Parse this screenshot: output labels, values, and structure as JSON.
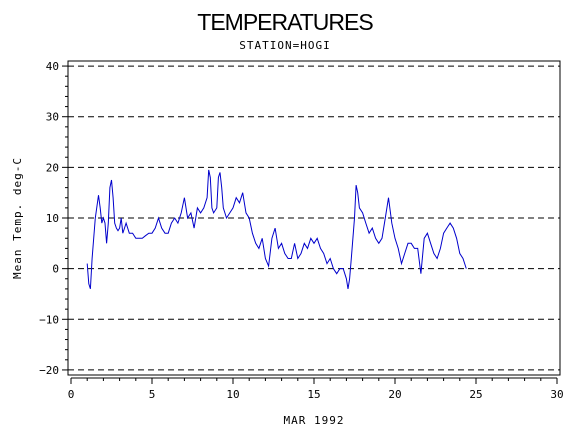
{
  "chart_data": {
    "type": "line",
    "title": "TEMPERATURES",
    "subtitle": "STATION=HOGI",
    "xlabel": "MAR 1992",
    "ylabel": "Mean Temp. deg-C",
    "xlim": [
      0,
      30
    ],
    "ylim": [
      -21,
      41
    ],
    "xticks": [
      0,
      5,
      10,
      15,
      20,
      25,
      30
    ],
    "yticks": [
      -20,
      -10,
      0,
      10,
      20,
      30,
      40
    ],
    "grid": "horizontal dashed",
    "color": "#0000cc",
    "series": [
      {
        "x": [
          1.0,
          1.1,
          1.2,
          1.3,
          1.5,
          1.7,
          1.8,
          1.9,
          2.0,
          2.1,
          2.2,
          2.3,
          2.4,
          2.5,
          2.6,
          2.7,
          2.8,
          2.9,
          3.0,
          3.1,
          3.2,
          3.3,
          3.4,
          3.5,
          3.6,
          3.8,
          4.0,
          4.2,
          4.4,
          4.6,
          4.8,
          5.0,
          5.2,
          5.4,
          5.6,
          5.8,
          6.0,
          6.2,
          6.4,
          6.6,
          6.8,
          7.0,
          7.2,
          7.4,
          7.6,
          7.8,
          8.0,
          8.2,
          8.4,
          8.5,
          8.6,
          8.7,
          8.8,
          9.0,
          9.1,
          9.2,
          9.3,
          9.4,
          9.5,
          9.6,
          9.8,
          10.0,
          10.2,
          10.4,
          10.6,
          10.8,
          11.0,
          11.2,
          11.4,
          11.6,
          11.8,
          12.0,
          12.2,
          12.4,
          12.6,
          12.8,
          13.0,
          13.2,
          13.4,
          13.6,
          13.8,
          14.0,
          14.2,
          14.4,
          14.6,
          14.8,
          15.0,
          15.2,
          15.4,
          15.6,
          15.8,
          16.0,
          16.2,
          16.4,
          16.6,
          16.8,
          17.0,
          17.1,
          17.2,
          17.3,
          17.4,
          17.5,
          17.6,
          17.7,
          17.8,
          18.0,
          18.2,
          18.4,
          18.6,
          18.8,
          19.0,
          19.2,
          19.4,
          19.6,
          19.8,
          20.0,
          20.2,
          20.4,
          20.6,
          20.8,
          21.0,
          21.2,
          21.4,
          21.6,
          21.8,
          22.0,
          22.2,
          22.4,
          22.6,
          22.8,
          23.0,
          23.2,
          23.4,
          23.6,
          23.8,
          24.0,
          24.2,
          24.4
        ],
        "y": [
          1,
          -3,
          -4,
          2,
          10,
          14.5,
          12,
          9,
          10,
          9,
          5,
          9,
          16,
          17.5,
          14,
          9,
          8,
          7.5,
          8,
          10,
          7,
          8,
          9,
          8,
          7,
          7,
          6,
          6,
          6,
          6.5,
          7,
          7,
          8,
          10,
          8,
          7,
          7,
          9,
          10,
          9,
          11,
          14,
          10,
          11,
          8,
          12,
          11,
          12,
          14,
          19.5,
          18,
          12,
          11,
          12,
          18,
          19,
          16,
          12,
          11,
          10,
          11,
          12,
          14,
          13,
          15,
          11,
          10,
          7,
          5,
          4,
          6,
          2,
          0.5,
          6,
          8,
          4,
          5,
          3,
          2,
          2,
          5,
          2,
          3,
          5,
          4,
          6,
          5,
          6,
          4,
          3,
          1,
          2,
          0,
          -1,
          0,
          0,
          -2,
          -4,
          -2,
          2,
          6,
          10,
          16.5,
          15,
          12,
          11,
          9,
          7,
          8,
          6,
          5,
          6,
          10,
          14,
          9,
          6,
          4,
          1,
          3,
          5,
          5,
          4,
          4,
          -1,
          6,
          7,
          5,
          3,
          2,
          4,
          7,
          8,
          9,
          8,
          6,
          3,
          2,
          0
        ]
      }
    ]
  }
}
